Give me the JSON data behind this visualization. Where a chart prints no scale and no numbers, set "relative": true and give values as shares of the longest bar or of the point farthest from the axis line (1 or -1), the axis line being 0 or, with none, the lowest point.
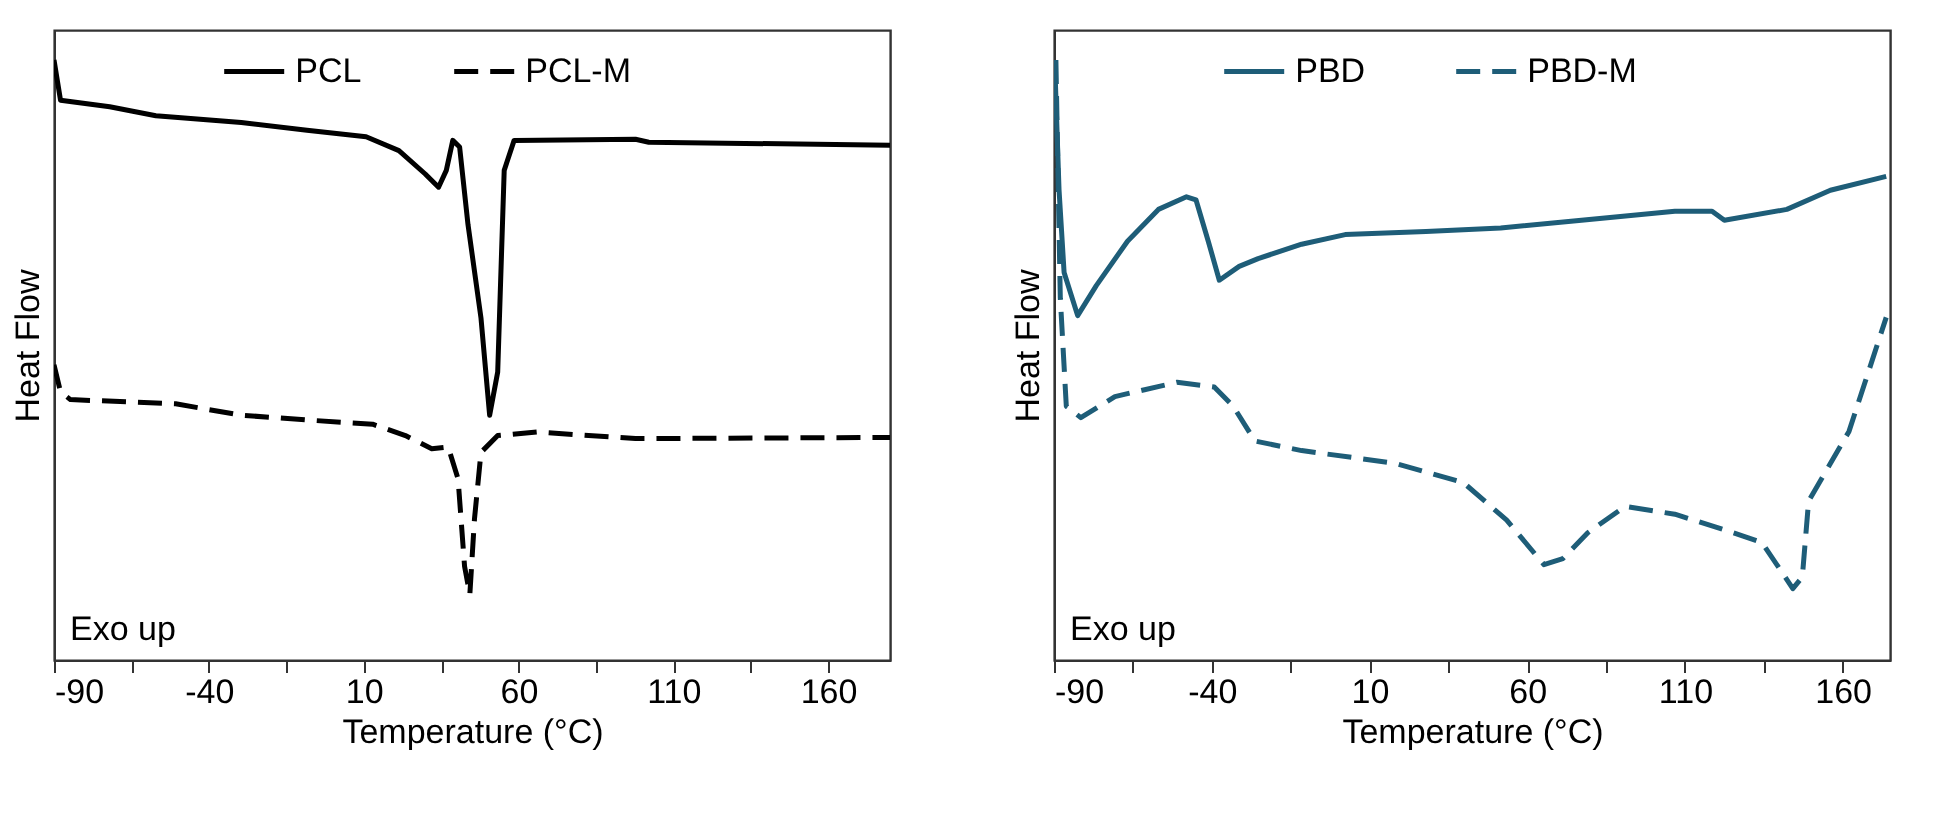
{
  "chart_data": [
    {
      "type": "line",
      "relative": true,
      "xlabel": "Temperature (°C)",
      "ylabel": "Heat Flow",
      "annotations": [
        "Exo up"
      ],
      "legend": "top",
      "xlim": [
        -90,
        180
      ],
      "xticks": [
        -90,
        {
          "value": -65,
          "label": null
        },
        -40,
        {
          "value": -15,
          "label": null
        },
        10,
        {
          "value": 35,
          "label": null
        },
        60,
        {
          "value": 85,
          "label": null
        },
        110,
        {
          "value": 135,
          "label": null
        },
        160
      ],
      "series": [
        {
          "name": "PCL",
          "color": "#000000",
          "line_style": "solid",
          "x": [
            -90,
            -87.9,
            -72,
            -57.1,
            -29.5,
            -8.3,
            10.8,
            21.4,
            29.9,
            34.2,
            36.7,
            38.8,
            41.0,
            43.7,
            47.9,
            50.7,
            53.3,
            55.4,
            58.6,
            97.8,
            102.1,
            180
          ],
          "values": [
            1.0,
            0.933,
            0.922,
            0.907,
            0.896,
            0.883,
            0.872,
            0.849,
            0.81,
            0.788,
            0.816,
            0.866,
            0.855,
            0.726,
            0.57,
            0.408,
            0.48,
            0.816,
            0.866,
            0.868,
            0.863,
            0.858
          ]
        },
        {
          "name": "PCL-M",
          "color": "#000000",
          "line_style": "dashed",
          "x": [
            -90,
            -87.9,
            -84.7,
            -50.7,
            -29.5,
            -8.3,
            12.9,
            23.5,
            32.0,
            37.3,
            40.5,
            42.6,
            44.3,
            45.8,
            47.9,
            53.3,
            66.0,
            97.8,
            180
          ],
          "values": [
            0.492,
            0.447,
            0.434,
            0.427,
            0.408,
            0.4,
            0.393,
            0.374,
            0.352,
            0.355,
            0.302,
            0.156,
            0.109,
            0.235,
            0.346,
            0.374,
            0.38,
            0.369,
            0.371
          ]
        }
      ]
    },
    {
      "type": "line",
      "relative": true,
      "xlabel": "Temperature (°C)",
      "ylabel": "Heat Flow",
      "annotations": [
        "Exo up"
      ],
      "legend": "top",
      "xlim": [
        -90,
        175
      ],
      "xticks": [
        -90,
        {
          "value": -65,
          "label": null
        },
        -40,
        {
          "value": -15,
          "label": null
        },
        10,
        {
          "value": 35,
          "label": null
        },
        60,
        {
          "value": 85,
          "label": null
        },
        110,
        {
          "value": 135,
          "label": null
        },
        160
      ],
      "series": [
        {
          "name": "PBD",
          "color": "#1e5d78",
          "line_style": "solid",
          "x": [
            -89.8,
            -88.4,
            -86.8,
            -82.5,
            -76.6,
            -66.7,
            -56.9,
            -48.0,
            -45.0,
            -41.1,
            -37.6,
            -31.3,
            -25.3,
            -11.5,
            2.3,
            27.9,
            51.6,
            77.2,
            106.8,
            118.6,
            122.5,
            142.3,
            156.1,
            173.8
          ],
          "values": [
            1.0,
            0.783,
            0.646,
            0.574,
            0.624,
            0.698,
            0.751,
            0.772,
            0.767,
            0.698,
            0.633,
            0.656,
            0.669,
            0.693,
            0.709,
            0.714,
            0.72,
            0.733,
            0.748,
            0.748,
            0.733,
            0.751,
            0.783,
            0.806
          ]
        },
        {
          "name": "PBD-M",
          "color": "#1e5d78",
          "line_style": "dashed",
          "x": [
            -89.4,
            -88.0,
            -86.1,
            -81.5,
            -70.7,
            -51.0,
            -39.2,
            -33.2,
            -26.3,
            -11.5,
            18.0,
            39.7,
            53.5,
            65.3,
            71.3,
            79.2,
            91.0,
            106.8,
            122.5,
            134.4,
            144.2,
            147.2,
            149.2,
            162.0,
            173.8
          ],
          "values": [
            1.0,
            0.603,
            0.423,
            0.404,
            0.439,
            0.463,
            0.455,
            0.423,
            0.365,
            0.349,
            0.328,
            0.296,
            0.233,
            0.159,
            0.169,
            0.212,
            0.256,
            0.243,
            0.217,
            0.196,
            0.119,
            0.138,
            0.265,
            0.381,
            0.571
          ]
        }
      ]
    }
  ]
}
